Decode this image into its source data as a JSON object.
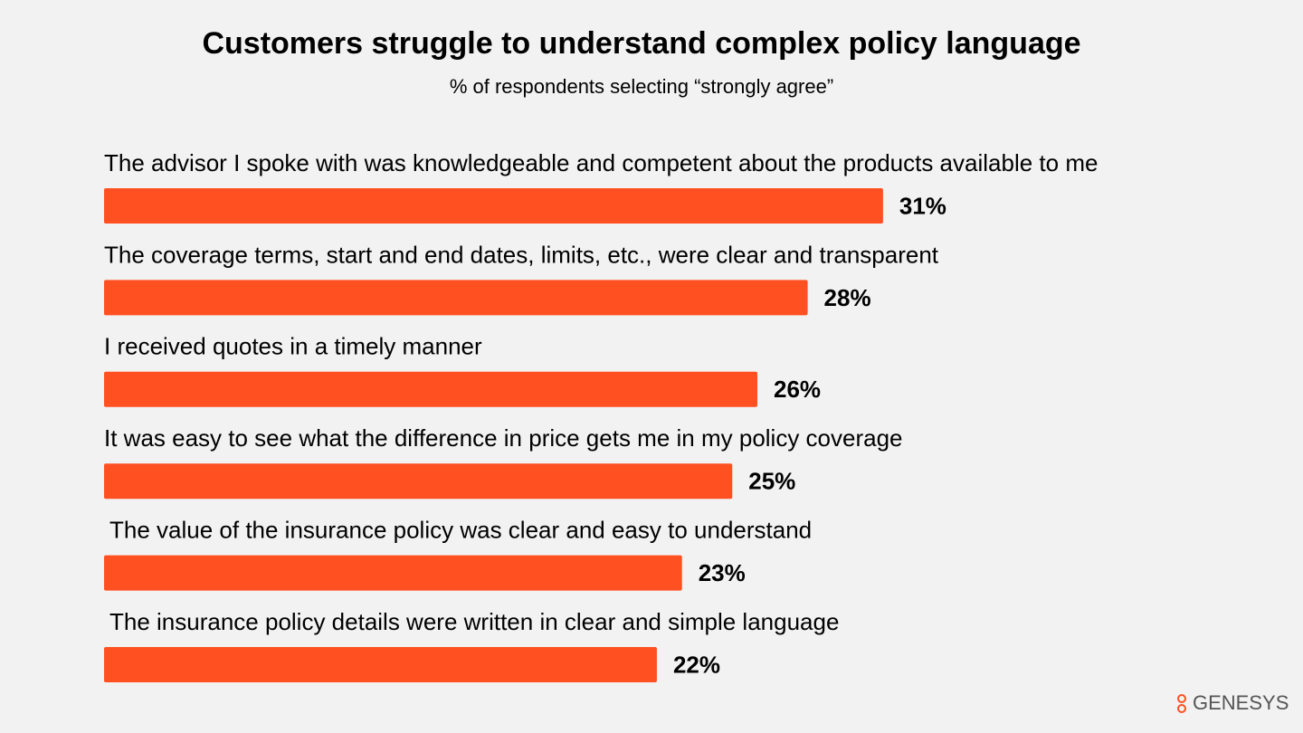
{
  "chart_data": {
    "type": "bar",
    "orientation": "horizontal",
    "title": "Customers struggle to understand complex policy language",
    "subtitle": "% of respondents selecting “strongly agree”",
    "categories": [
      "The advisor I spoke with was knowledgeable and competent about the products available to me",
      "The coverage terms, start and end dates, limits, etc., were clear and transparent",
      "I received quotes in a timely manner",
      "It was easy to see what the difference in price gets me in my policy coverage",
      "The value of the insurance policy was clear and easy to understand",
      "The insurance policy details were written in clear and simple language"
    ],
    "values": [
      31,
      28,
      26,
      25,
      23,
      22
    ],
    "value_labels": [
      "31%",
      "28%",
      "26%",
      "25%",
      "23%",
      "22%"
    ],
    "color": "#ff5022"
  },
  "logo": "GENESYS"
}
